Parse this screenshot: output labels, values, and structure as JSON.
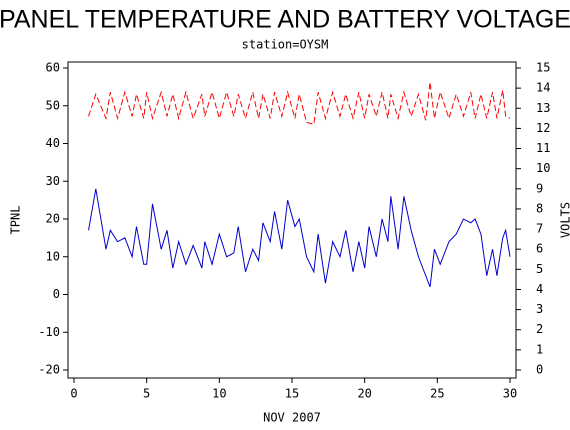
{
  "chart_data": {
    "type": "line",
    "title": "PANEL TEMPERATURE AND BATTERY VOLTAGE",
    "subtitle": "station=OYSM",
    "x_label": "NOV 2007",
    "y_label": "TPNL",
    "y2_label": "VOLTS",
    "xlim": [
      0,
      30
    ],
    "xticks": [
      0,
      5,
      10,
      15,
      20,
      25,
      30
    ],
    "ylim": [
      -20,
      60
    ],
    "yticks": [
      -20,
      -10,
      0,
      10,
      20,
      30,
      40,
      50,
      60
    ],
    "y2lim": [
      0,
      15
    ],
    "y2ticks": [
      0,
      1,
      2,
      3,
      4,
      5,
      6,
      7,
      8,
      9,
      10,
      11,
      12,
      13,
      14,
      15
    ],
    "x": [
      1,
      1.5,
      2.2,
      2.5,
      3,
      3.5,
      4,
      4.3,
      4.8,
      5,
      5.4,
      6,
      6.4,
      6.8,
      7.2,
      7.7,
      8.2,
      8.8,
      9,
      9.5,
      10,
      10.5,
      11,
      11.3,
      11.8,
      12.3,
      12.7,
      13,
      13.5,
      13.8,
      14.3,
      14.7,
      15.2,
      15.5,
      16,
      16.5,
      16.8,
      17.3,
      17.8,
      18.3,
      18.7,
      19.2,
      19.6,
      20,
      20.3,
      20.8,
      21.2,
      21.6,
      21.8,
      22.3,
      22.7,
      23.2,
      23.7,
      24.2,
      24.5,
      24.8,
      25.2,
      25.8,
      26.3,
      26.8,
      27.3,
      27.6,
      28,
      28.4,
      28.8,
      29.1,
      29.5,
      29.7,
      30
    ],
    "series": [
      {
        "color": "#0000cc",
        "values": [
          17,
          28,
          12,
          17,
          14,
          15,
          10,
          18,
          8,
          8,
          24,
          12,
          17,
          7,
          14,
          8,
          13,
          7,
          14,
          8,
          16,
          10,
          11,
          18,
          6,
          12,
          9,
          19,
          14,
          22,
          12,
          25,
          18,
          20,
          10,
          6,
          16,
          3,
          14,
          10,
          17,
          6,
          14,
          7,
          18,
          10,
          20,
          14,
          26,
          12,
          26,
          17,
          10,
          5,
          2,
          12,
          8,
          14,
          16,
          20,
          19,
          20,
          16,
          5,
          12,
          5,
          15,
          17,
          10
        ]
      },
      {
        "color": "#ff0000",
        "axis": "y2",
        "dashed": true,
        "values": [
          12.6,
          13.7,
          12.5,
          13.8,
          12.5,
          13.8,
          12.6,
          13.7,
          12.5,
          13.8,
          12.5,
          13.8,
          12.6,
          13.7,
          12.5,
          13.8,
          12.5,
          13.7,
          12.6,
          13.8,
          12.5,
          13.8,
          12.6,
          13.7,
          12.5,
          13.8,
          12.5,
          13.7,
          12.5,
          13.8,
          12.6,
          13.8,
          12.5,
          13.7,
          12.3,
          12.2,
          13.8,
          12.5,
          13.8,
          12.6,
          13.7,
          12.5,
          13.8,
          12.5,
          13.7,
          12.6,
          13.8,
          12.5,
          13.7,
          12.5,
          13.8,
          12.6,
          13.7,
          12.4,
          14.3,
          12.5,
          13.8,
          12.5,
          13.7,
          12.6,
          13.8,
          12.5,
          13.7,
          12.5,
          13.8,
          12.5,
          13.9,
          12.6,
          12.5
        ]
      }
    ]
  }
}
